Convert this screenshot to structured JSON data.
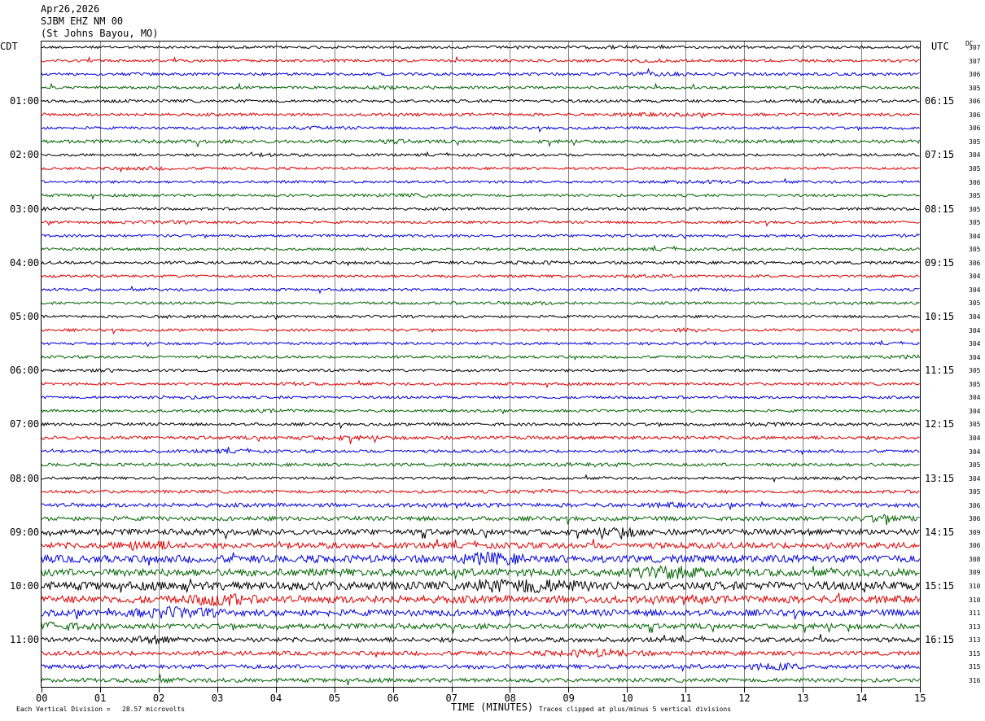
{
  "header": {
    "date": "Apr26,2026",
    "station": "SJBM EHZ NM 00",
    "location": "(St Johns Bayou, MO)"
  },
  "labels": {
    "left_timezone": "CDT",
    "right_timezone": "UTC",
    "dc_label": "DC"
  },
  "chart_data": {
    "type": "line",
    "title": "",
    "xlabel": "TIME (MINUTES)",
    "xlim": [
      0,
      15
    ],
    "x_ticks": [
      "00",
      "01",
      "02",
      "03",
      "04",
      "05",
      "06",
      "07",
      "08",
      "09",
      "10",
      "11",
      "12",
      "13",
      "14",
      "15"
    ],
    "rows_per_hour": 4,
    "left_hour_labels": [
      "01:00",
      "02:00",
      "03:00",
      "04:00",
      "05:00",
      "06:00",
      "07:00",
      "08:00",
      "09:00",
      "10:00",
      "11:00"
    ],
    "right_hour_labels": [
      "06:15",
      "07:15",
      "08:15",
      "09:15",
      "10:15",
      "11:15",
      "12:15",
      "13:15",
      "14:15",
      "15:15",
      "16:15"
    ],
    "trace_colors": [
      "#000000",
      "#e00000",
      "#0000e0",
      "#006400"
    ],
    "dc_values": [
      "307",
      "307",
      "306",
      "305",
      "306",
      "306",
      "306",
      "305",
      "304",
      "305",
      "306",
      "305",
      "305",
      "305",
      "304",
      "305",
      "306",
      "304",
      "304",
      "305",
      "304",
      "304",
      "304",
      "304",
      "305",
      "305",
      "304",
      "304",
      "305",
      "304",
      "304",
      "305",
      "304",
      "305",
      "306",
      "306",
      "309",
      "306",
      "308",
      "309",
      "310",
      "310",
      "311",
      "313",
      "313",
      "315",
      "315",
      "316"
    ],
    "amplitude_levels": [
      1,
      1,
      1.1,
      1,
      1.1,
      1.1,
      1,
      1.3,
      1,
      1,
      1,
      1,
      1,
      1,
      1,
      1,
      1.1,
      1,
      1,
      1,
      1,
      1,
      1,
      1,
      1,
      1,
      1,
      1,
      1.1,
      1.3,
      1.1,
      1.2,
      1,
      1.2,
      1.5,
      1.6,
      2.2,
      2.2,
      2.8,
      2.8,
      3.2,
      2.8,
      2.4,
      2,
      1.7,
      1.6,
      1.6,
      1.5
    ],
    "scale_note": "Each Vertical Division =   28.57 microvolts",
    "clip_note": "Traces clipped at plus/minus 5 vertical divisions"
  },
  "colors": {
    "grid": "#808080",
    "frame": "#000000"
  }
}
